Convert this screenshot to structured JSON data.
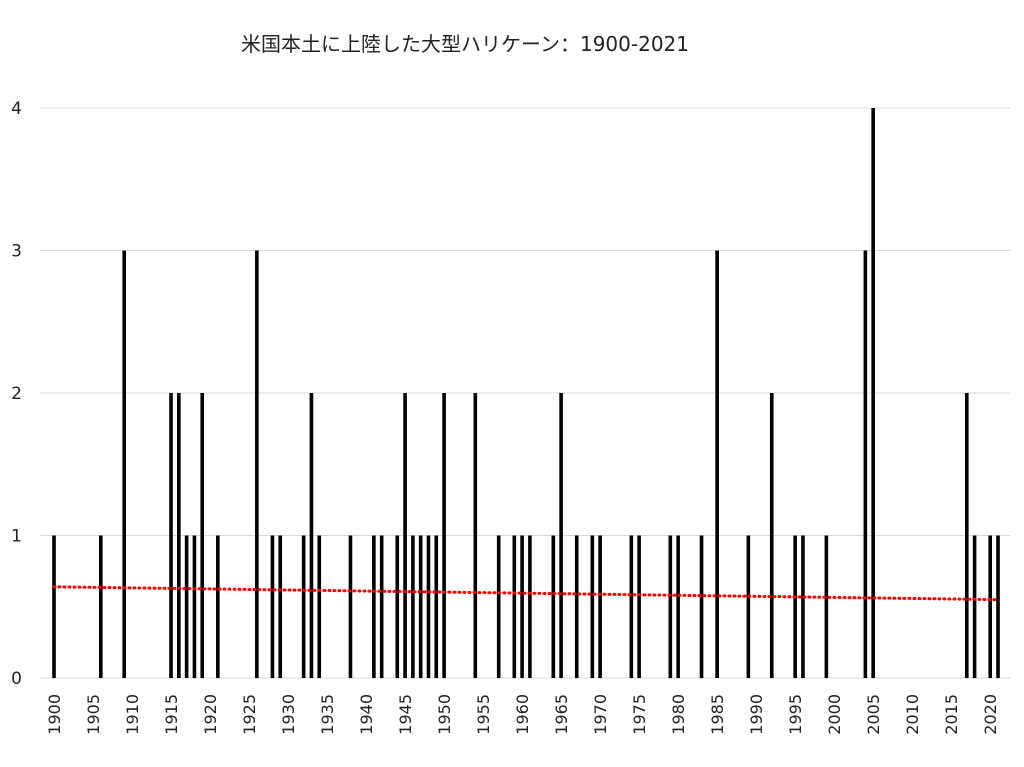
{
  "chart_data": {
    "type": "bar",
    "title": "米国本土に上陸した大型ハリケーン：1900-2021",
    "xlabel": "",
    "ylabel": "",
    "xlim": [
      1900,
      2021
    ],
    "ylim": [
      0,
      4
    ],
    "yticks": [
      "0",
      "1",
      "2",
      "3",
      "4"
    ],
    "xticks": [
      "1900",
      "1905",
      "1910",
      "1915",
      "1920",
      "1925",
      "1930",
      "1935",
      "1940",
      "1945",
      "1950",
      "1955",
      "1960",
      "1965",
      "1970",
      "1975",
      "1980",
      "1985",
      "1990",
      "1995",
      "2000",
      "2005",
      "2010",
      "2015",
      "2020"
    ],
    "grid": true,
    "bar_color": "#000000",
    "trend_color": "#ff0000",
    "trendline": {
      "style": "dotted",
      "start": [
        1900,
        0.64
      ],
      "end": [
        2021,
        0.55
      ]
    },
    "points": [
      [
        1900,
        1
      ],
      [
        1906,
        1
      ],
      [
        1909,
        3
      ],
      [
        1915,
        2
      ],
      [
        1916,
        2
      ],
      [
        1917,
        1
      ],
      [
        1918,
        1
      ],
      [
        1919,
        2
      ],
      [
        1921,
        1
      ],
      [
        1926,
        3
      ],
      [
        1928,
        1
      ],
      [
        1929,
        1
      ],
      [
        1932,
        1
      ],
      [
        1933,
        2
      ],
      [
        1934,
        1
      ],
      [
        1938,
        1
      ],
      [
        1941,
        1
      ],
      [
        1942,
        1
      ],
      [
        1944,
        1
      ],
      [
        1945,
        2
      ],
      [
        1946,
        1
      ],
      [
        1947,
        1
      ],
      [
        1948,
        1
      ],
      [
        1949,
        1
      ],
      [
        1950,
        2
      ],
      [
        1954,
        2
      ],
      [
        1957,
        1
      ],
      [
        1959,
        1
      ],
      [
        1960,
        1
      ],
      [
        1961,
        1
      ],
      [
        1964,
        1
      ],
      [
        1965,
        2
      ],
      [
        1967,
        1
      ],
      [
        1969,
        1
      ],
      [
        1970,
        1
      ],
      [
        1974,
        1
      ],
      [
        1975,
        1
      ],
      [
        1979,
        1
      ],
      [
        1980,
        1
      ],
      [
        1983,
        1
      ],
      [
        1985,
        3
      ],
      [
        1989,
        1
      ],
      [
        1992,
        2
      ],
      [
        1995,
        1
      ],
      [
        1996,
        1
      ],
      [
        1999,
        1
      ],
      [
        2004,
        3
      ],
      [
        2005,
        4
      ],
      [
        2017,
        2
      ],
      [
        2018,
        1
      ],
      [
        2020,
        1
      ],
      [
        2021,
        1
      ]
    ]
  }
}
